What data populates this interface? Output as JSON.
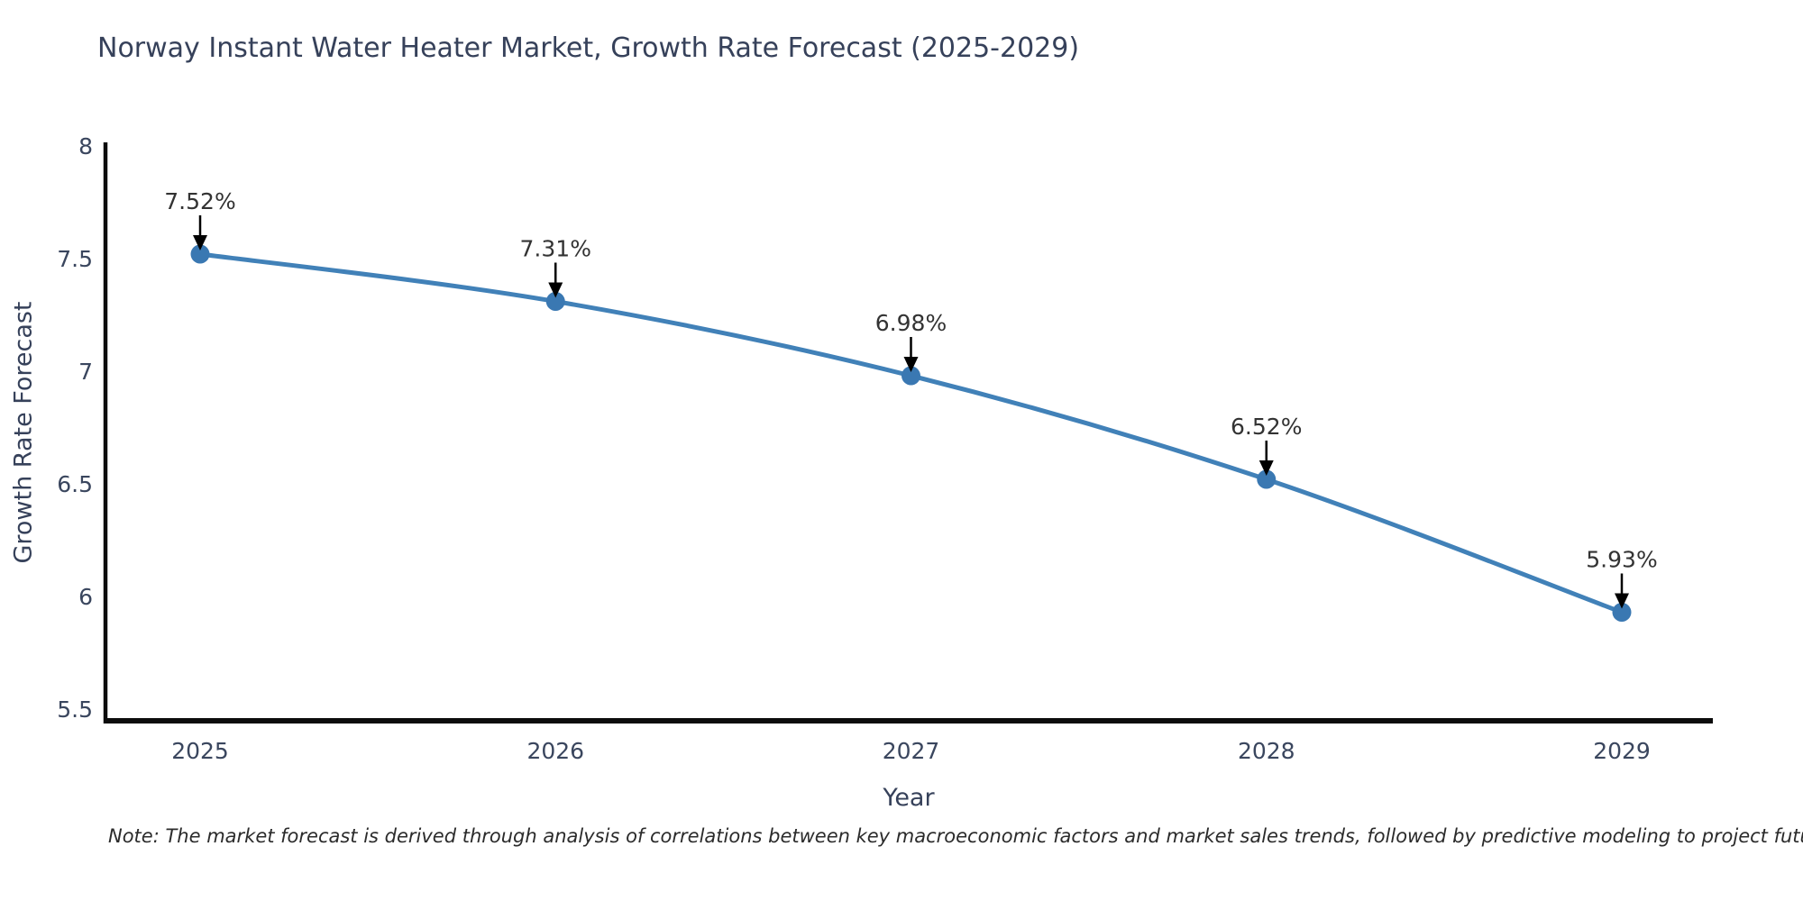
{
  "page": {
    "note": "Note: The market forecast is derived through analysis of correlations between key macroeconomic factors and market sales trends, followed by predictive modeling to project future sales"
  },
  "chart_data": {
    "type": "line",
    "title": "Norway Instant Water Heater Market, Growth Rate Forecast (2025-2029)",
    "xlabel": "Year",
    "ylabel": "Growth Rate Forecast",
    "categories": [
      "2025",
      "2026",
      "2027",
      "2028",
      "2029"
    ],
    "series": [
      {
        "name": "Growth Rate Forecast",
        "values": [
          7.52,
          7.31,
          6.98,
          6.52,
          5.93
        ]
      }
    ],
    "point_labels": [
      "7.52%",
      "7.31%",
      "6.98%",
      "6.52%",
      "5.93%"
    ],
    "y_ticks": [
      5.5,
      6,
      6.5,
      7,
      7.5,
      8
    ],
    "y_tick_labels": [
      "5.5",
      "6",
      "6.5",
      "7",
      "7.5",
      "8"
    ],
    "ylim": [
      5.45,
      8
    ],
    "grid": false,
    "legend_position": "none",
    "annotations": "value labels with down arrows above each point",
    "colors": {
      "line": "#4181b8",
      "marker": "#3a78b2",
      "axis": "#0c0c0c",
      "arrow": "#000000",
      "title_text": "#36415a",
      "tick_text": "#3a465e",
      "label_text": "#333333",
      "background": "#ffffff"
    }
  }
}
